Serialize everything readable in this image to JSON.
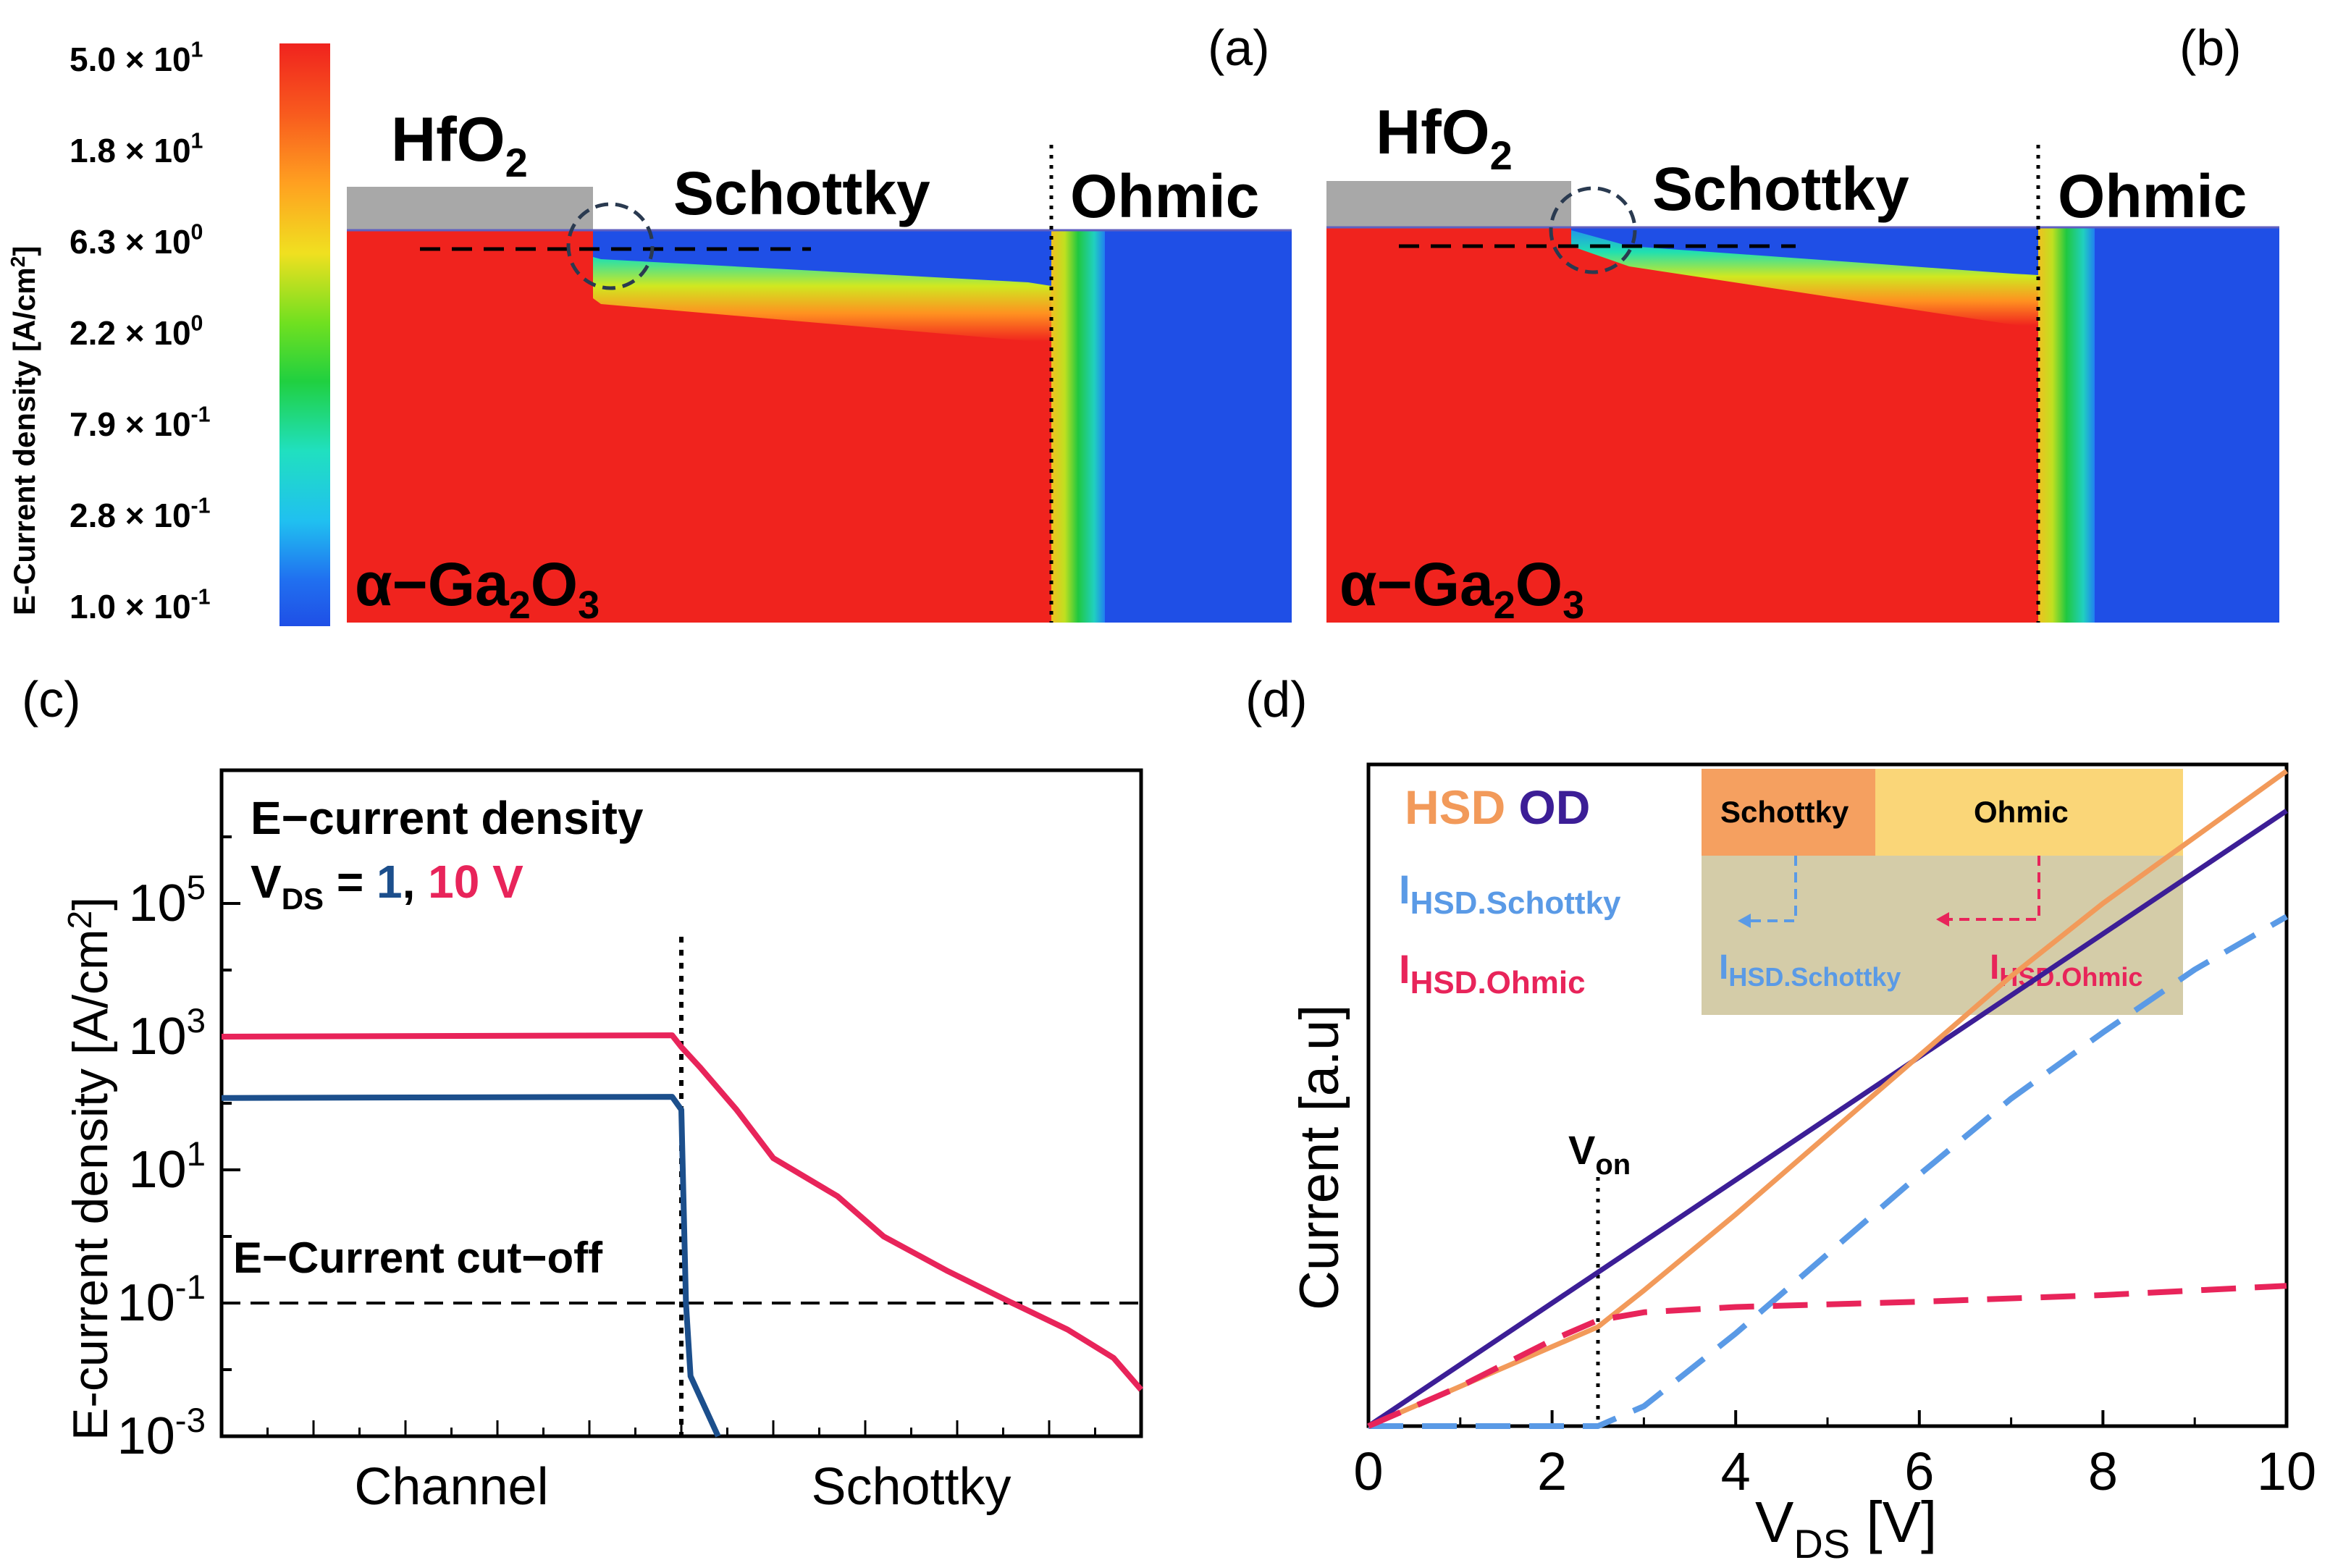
{
  "colorbar": {
    "title": "E-Current density [A/cm2]",
    "ticks": [
      {
        "mantissa": "5.0",
        "exp": "1"
      },
      {
        "mantissa": "1.8",
        "exp": "1"
      },
      {
        "mantissa": "6.3",
        "exp": "0"
      },
      {
        "mantissa": "2.2",
        "exp": "0"
      },
      {
        "mantissa": "7.9",
        "exp": "-1"
      },
      {
        "mantissa": "2.8",
        "exp": "-1"
      },
      {
        "mantissa": "1.0",
        "exp": "-1"
      }
    ],
    "times": "×",
    "base": "10"
  },
  "panel_a": {
    "label": "(a)",
    "oxide": "HfO",
    "oxide_sub": "2",
    "schottky": "Schottky",
    "ohmic": "Ohmic",
    "material": "α−Ga",
    "material_sub1": "2",
    "material_mid": "O",
    "material_sub2": "3"
  },
  "panel_b": {
    "label": "(b)",
    "oxide": "HfO",
    "oxide_sub": "2",
    "schottky": "Schottky",
    "ohmic": "Ohmic",
    "material": "α−Ga",
    "material_sub1": "2",
    "material_mid": "O",
    "material_sub2": "3"
  },
  "colors": {
    "red": "#f0231e",
    "blue": "#1f4fe6",
    "grey": "#a8a8a8",
    "pink": "#e8245a",
    "navy": "#1c4f8c",
    "orange": "#f29a5a",
    "purple": "#3c1e96",
    "lightblue": "#5a9ae6"
  },
  "chart_data": [
    {
      "type": "line",
      "panel": "(c)",
      "title_line1": "E−current density",
      "title_vds": "V",
      "title_vds_sub": "DS",
      "title_eq": " = ",
      "title_v1": "1",
      "title_comma": ", ",
      "title_v2": "10 V",
      "ylabel": "E-current density [A/cm2]",
      "ylabel_main": "E-current density [A/cm",
      "ylabel_sup": "2",
      "ylabel_end": "]",
      "yscale": "log",
      "ylim": [
        0.001,
        10000000
      ],
      "yticks": [
        {
          "mantissa": "10",
          "exp": "5",
          "value": 100000
        },
        {
          "mantissa": "10",
          "exp": "3",
          "value": 1000
        },
        {
          "mantissa": "10",
          "exp": "1",
          "value": 10
        },
        {
          "mantissa": "10",
          "exp": "-1",
          "value": 0.1
        },
        {
          "mantissa": "10",
          "exp": "-3",
          "value": 0.001
        }
      ],
      "xlim": [
        0,
        1
      ],
      "xlabels": [
        {
          "text": "Channel",
          "x": 0.25
        },
        {
          "text": "Schottky",
          "x": 0.75
        }
      ],
      "divider_x": 0.5,
      "cutoff": {
        "value": 0.1,
        "label": "E−Current cut−off"
      },
      "series": [
        {
          "name": "VDS = 10 V",
          "color": "#e8245a",
          "x": [
            0,
            0.49,
            0.5,
            0.52,
            0.56,
            0.6,
            0.67,
            0.72,
            0.79,
            0.86,
            0.92,
            0.97,
            1.0
          ],
          "y": [
            1000,
            1050,
            700,
            350,
            80,
            15,
            4,
            1,
            0.3,
            0.1,
            0.04,
            0.015,
            0.005
          ]
        },
        {
          "name": "VDS = 1 V",
          "color": "#1c4f8c",
          "x": [
            0,
            0.49,
            0.5,
            0.505,
            0.51,
            0.54
          ],
          "y": [
            120,
            125,
            80,
            0.1,
            0.008,
            0.0007
          ]
        }
      ]
    },
    {
      "type": "line",
      "panel": "(d)",
      "xlabel_main": "V",
      "xlabel_sub": "DS",
      "xlabel_end": " [V]",
      "ylabel": "Current [a.u]",
      "xlim": [
        0,
        10
      ],
      "ylim": [
        0,
        10
      ],
      "xticks": [
        0,
        2,
        4,
        6,
        8,
        10
      ],
      "von": {
        "x": 2.5,
        "label_main": "V",
        "label_sub": "on"
      },
      "legend": {
        "hsd": "HSD",
        "od": "OD",
        "i_schottky_main": "I",
        "i_schottky_sub": "HSD.Schottky",
        "i_ohmic_main": "I",
        "i_ohmic_sub": "HSD.Ohmic"
      },
      "inset": {
        "schottky": "Schottky",
        "ohmic": "Ohmic",
        "i_schottky_main": "I",
        "i_schottky_sub": "HSD.Schottky",
        "i_ohmic_main": "I",
        "i_ohmic_sub": "HSD.Ohmic"
      },
      "series": [
        {
          "name": "OD",
          "color": "#3c1e96",
          "style": "solid",
          "x": [
            0,
            10
          ],
          "y": [
            0,
            9.3
          ]
        },
        {
          "name": "HSD",
          "color": "#f29a5a",
          "style": "solid",
          "x": [
            0,
            2.5,
            3,
            4,
            5,
            6,
            7,
            8,
            9,
            10
          ],
          "y": [
            0,
            1.5,
            2.05,
            3.2,
            4.4,
            5.6,
            6.8,
            7.9,
            8.9,
            9.9
          ]
        },
        {
          "name": "IHSD.Schottky",
          "color": "#5a9ae6",
          "style": "dashed",
          "x": [
            0,
            2.5,
            3,
            4,
            5,
            6,
            7,
            8,
            9,
            10
          ],
          "y": [
            0,
            0,
            0.3,
            1.4,
            2.6,
            3.8,
            4.95,
            5.95,
            6.9,
            7.7
          ]
        },
        {
          "name": "IHSD.Ohmic",
          "color": "#e8245a",
          "style": "dashed",
          "x": [
            0,
            1,
            2,
            2.5,
            3,
            4,
            6,
            8,
            10
          ],
          "y": [
            0,
            0.6,
            1.3,
            1.6,
            1.72,
            1.8,
            1.88,
            1.98,
            2.12
          ]
        }
      ]
    }
  ]
}
